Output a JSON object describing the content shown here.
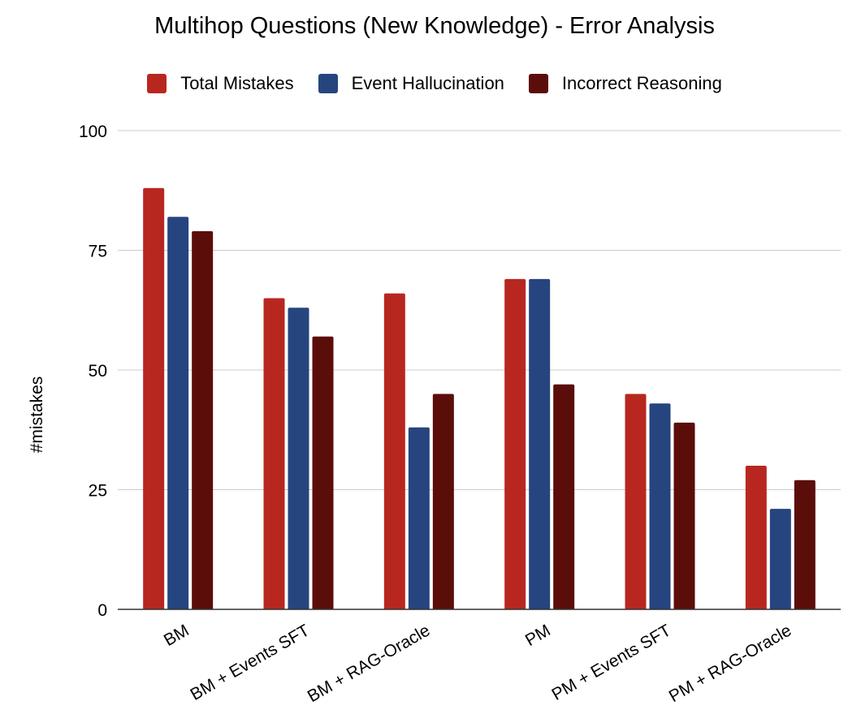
{
  "chart_data": {
    "type": "bar",
    "title": "Multihop Questions (New Knowledge) - Error Analysis",
    "xlabel": "",
    "ylabel": "#mistakes",
    "ylim": [
      0,
      100
    ],
    "yticks": [
      0,
      25,
      50,
      75,
      100
    ],
    "grid": true,
    "legend_position": "top",
    "categories": [
      "BM",
      "BM + Events SFT",
      "BM + RAG-Oracle",
      "PM",
      "PM + Events SFT",
      "PM + RAG-Oracle"
    ],
    "series": [
      {
        "name": "Total Mistakes",
        "color": "#B8271F",
        "values": [
          88,
          65,
          66,
          69,
          45,
          30
        ]
      },
      {
        "name": "Event Hallucination",
        "color": "#26457F",
        "values": [
          82,
          63,
          38,
          69,
          43,
          21
        ]
      },
      {
        "name": "Incorrect Reasoning",
        "color": "#5B0D0A",
        "values": [
          79,
          57,
          45,
          47,
          39,
          27
        ]
      }
    ]
  }
}
